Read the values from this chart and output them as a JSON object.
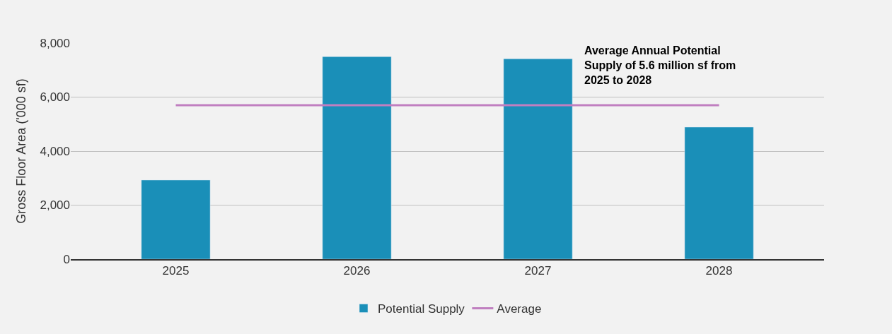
{
  "chart_data": {
    "type": "bar",
    "ylabel": "Gross Floor Area ('000 sf)",
    "categories": [
      "2025",
      "2026",
      "2027",
      "2028"
    ],
    "series": [
      {
        "name": "Potential Supply",
        "color": "#1a8fb8",
        "values": [
          2930,
          7500,
          7420,
          4890
        ]
      },
      {
        "name": "Average",
        "type": "line",
        "color": "#c07fc0",
        "marker": "none",
        "values": [
          5700,
          5700,
          5700,
          5700
        ]
      }
    ],
    "ylim": [
      0,
      8000
    ],
    "yticks": [
      {
        "value": 0,
        "label": "0"
      },
      {
        "value": 2000,
        "label": "2,000"
      },
      {
        "value": 4000,
        "label": "4,000"
      },
      {
        "value": 6000,
        "label": "6,000"
      },
      {
        "value": 8000,
        "label": "8,000"
      }
    ],
    "grid": "y",
    "legend": "bottom",
    "annotations": [
      "Average Annual Potential Supply of 5.6 million sf from 2025 to 2028"
    ]
  }
}
